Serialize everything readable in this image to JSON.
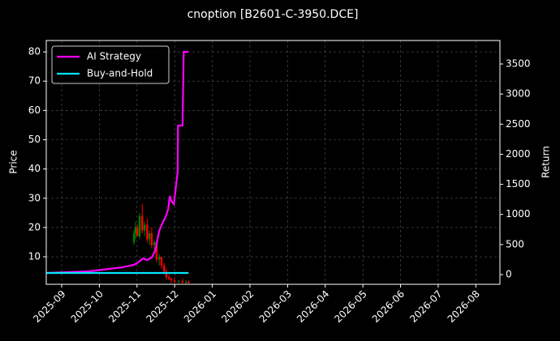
{
  "chart_data": {
    "type": "candlestick",
    "title": "cnoption [B2601-C-3950.DCE]",
    "y_label": "Price",
    "y2_label": "Return",
    "xlim": [
      -0.41,
      11.64
    ],
    "xticks": [
      {
        "value": 0,
        "label": "2025-09"
      },
      {
        "value": 1,
        "label": "2025-10"
      },
      {
        "value": 2,
        "label": "2025-11"
      },
      {
        "value": 3,
        "label": "2025-12"
      },
      {
        "value": 4,
        "label": "2026-01"
      },
      {
        "value": 5,
        "label": "2026-02"
      },
      {
        "value": 6,
        "label": "2026-03"
      },
      {
        "value": 7,
        "label": "2026-04"
      },
      {
        "value": 8,
        "label": "2026-05"
      },
      {
        "value": 9,
        "label": "2026-06"
      },
      {
        "value": 10,
        "label": "2026-07"
      },
      {
        "value": 11,
        "label": "2026-08"
      }
    ],
    "ylim": [
      0.6,
      83.9
    ],
    "yticks": [
      10,
      20,
      30,
      40,
      50,
      60,
      70,
      80
    ],
    "y2lim": [
      -161,
      3890
    ],
    "y2ticks": [
      0,
      500,
      1000,
      1500,
      2000,
      2500,
      3000,
      3500
    ],
    "grid": true,
    "legend": "upper left",
    "up_color": "#008000",
    "down_color": "#ff0000",
    "candles": {
      "x": [
        1.92,
        1.96,
        2.01,
        2.07,
        2.14,
        2.2,
        2.27,
        2.33,
        2.39,
        2.46,
        2.52,
        2.59,
        2.65,
        2.72,
        2.78,
        2.85,
        2.91,
        3.0,
        3.11,
        3.21,
        3.3,
        3.37
      ],
      "open": [
        15,
        18,
        20,
        17,
        24,
        19,
        21,
        16,
        18,
        14,
        15,
        9,
        10,
        7,
        5,
        3,
        2.5,
        2,
        1.5,
        1.8,
        1.2,
        1.5
      ],
      "high": [
        19,
        22,
        21,
        25,
        28,
        22,
        23,
        19,
        20,
        16,
        15,
        11,
        10,
        8,
        6,
        4,
        3,
        3,
        2,
        2.5,
        2,
        2
      ],
      "low": [
        14,
        16,
        17,
        16,
        18,
        17,
        15,
        14,
        13,
        12,
        8,
        7,
        6,
        4,
        2,
        2,
        1,
        1,
        1,
        1,
        0.8,
        0.9
      ],
      "close": [
        18,
        20,
        17,
        24,
        19,
        21,
        16,
        18,
        14,
        15,
        9,
        10,
        7,
        5,
        3,
        2.5,
        2,
        1.5,
        1.8,
        1.2,
        1.5,
        1.0
      ]
    },
    "series": [
      {
        "name": "AI Strategy",
        "color": "#ff00ff",
        "axis": "y2",
        "x": [
          -0.41,
          0.73,
          1.6,
          1.92,
          2.03,
          2.16,
          2.27,
          2.39,
          2.48,
          2.59,
          2.68,
          2.76,
          2.83,
          2.87,
          2.91,
          2.98,
          3.04,
          3.08,
          3.09,
          3.21,
          3.24,
          3.37
        ],
        "values": [
          27,
          54,
          121,
          162,
          202,
          269,
          242,
          283,
          390,
          727,
          862,
          956,
          1090,
          1306,
          1225,
          1171,
          1494,
          1710,
          2477,
          2477,
          3702,
          3702
        ]
      },
      {
        "name": "Buy-and-Hold",
        "color": "#00e5ff",
        "axis": "y2",
        "x": [
          -0.41,
          3.37
        ],
        "values": [
          27,
          27
        ]
      }
    ]
  }
}
